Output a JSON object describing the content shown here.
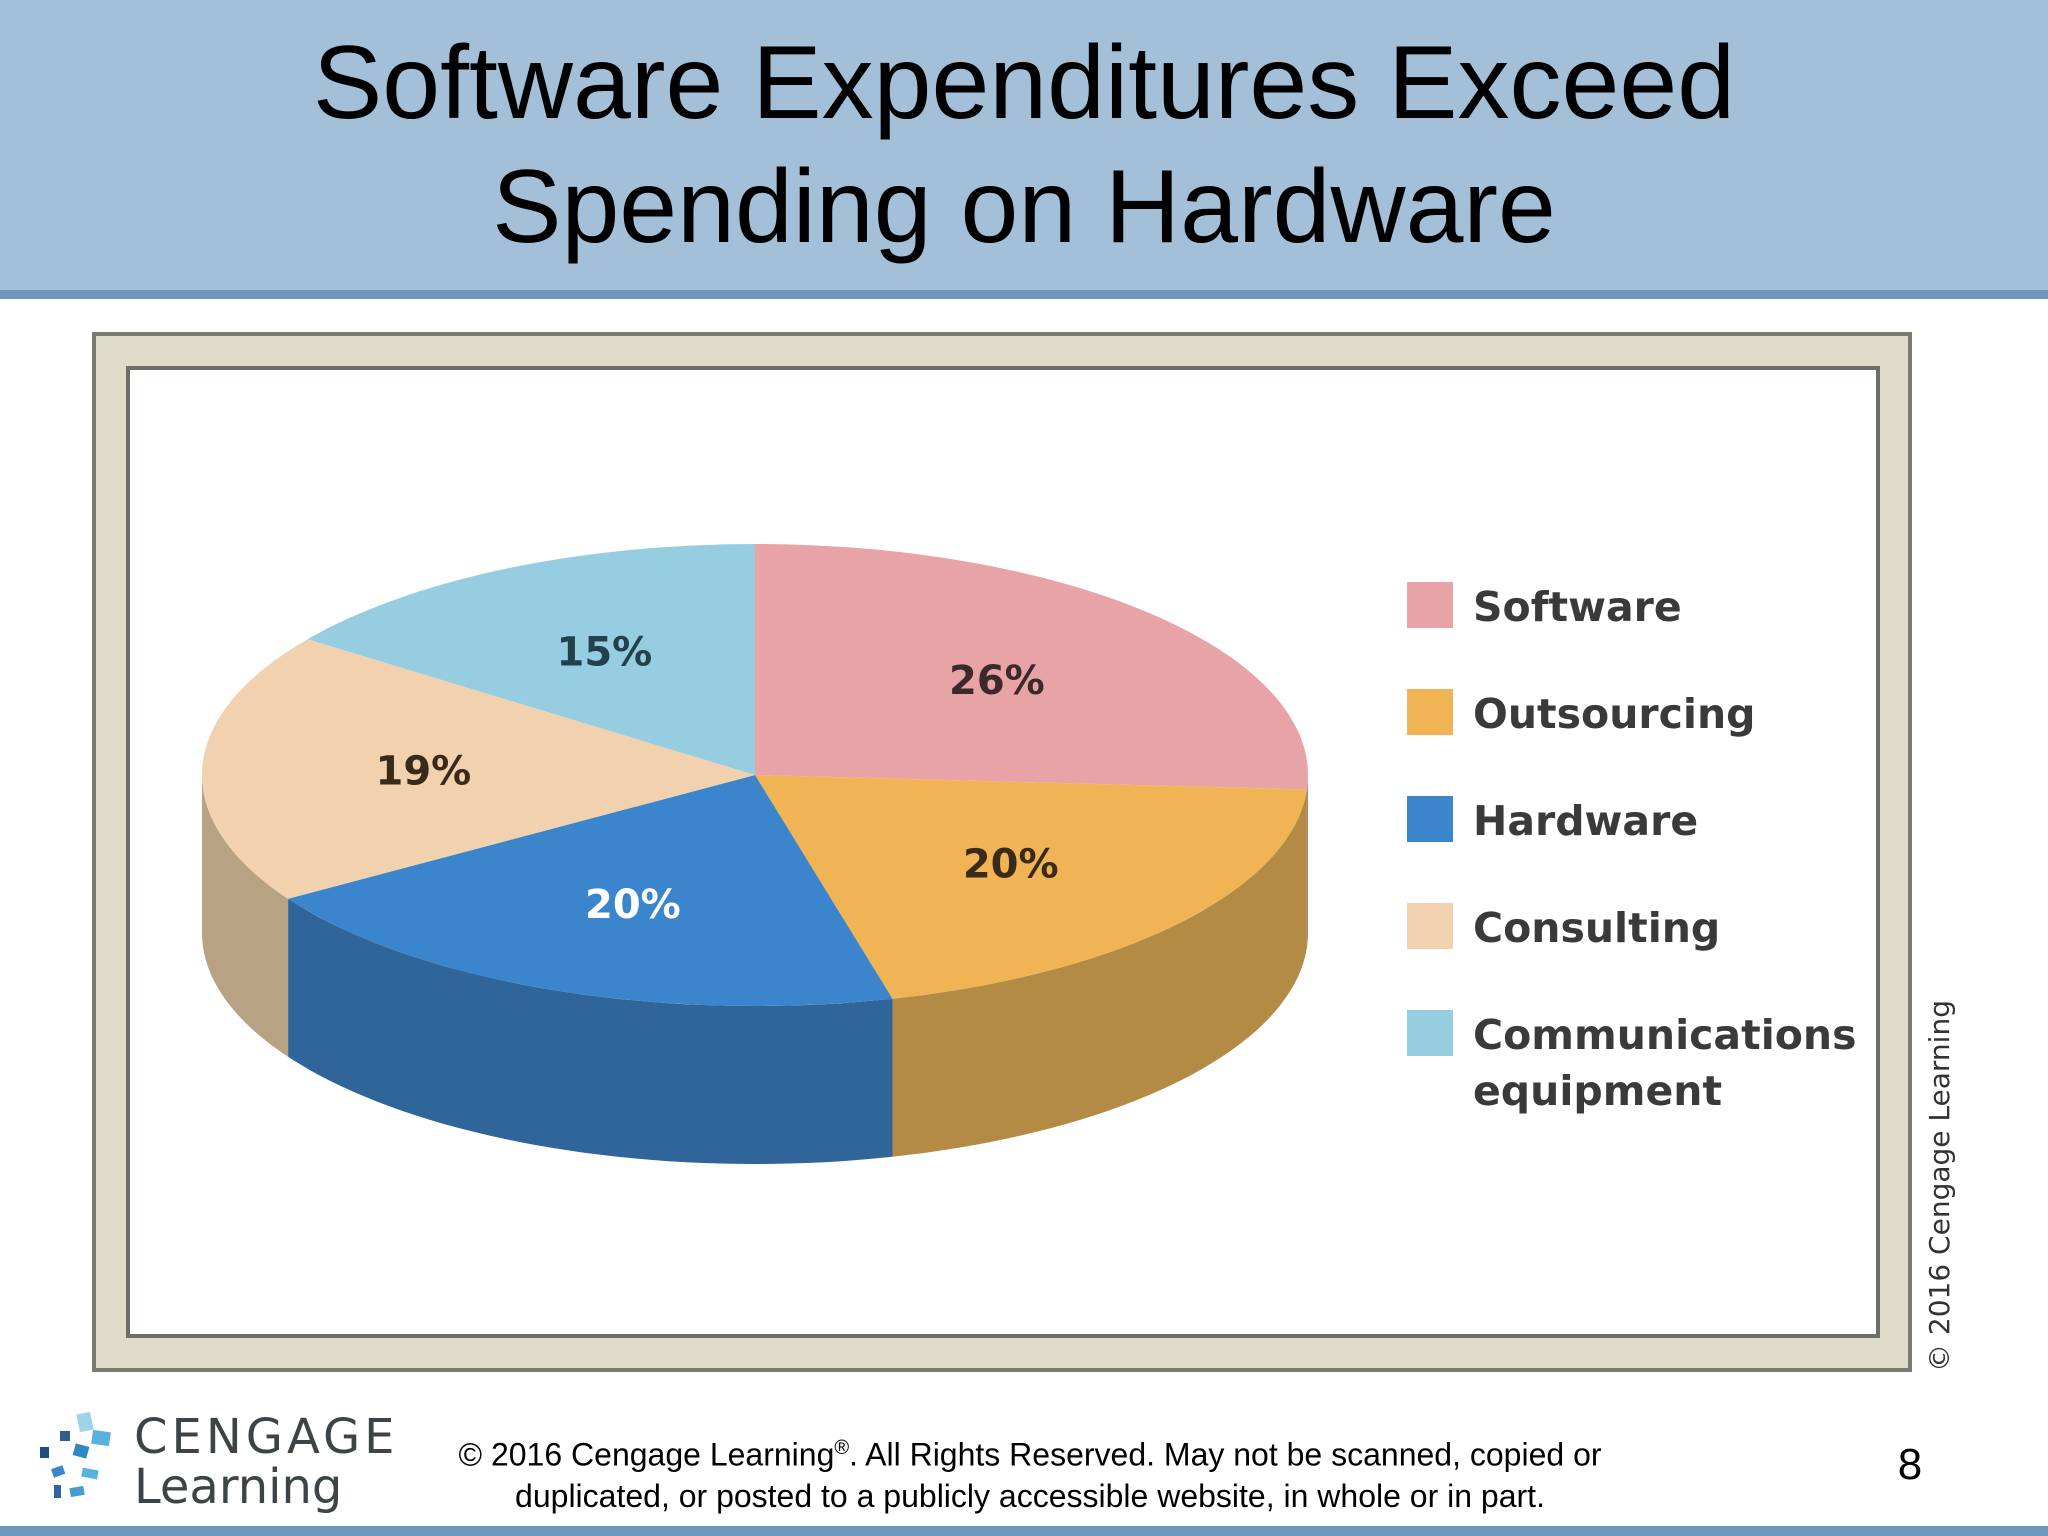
{
  "slide": {
    "title": "Software Expenditures Exceed Spending on Hardware",
    "figure_credit": "© 2016 Cengage Learning",
    "logo_line1": "CENGAGE",
    "logo_line2": "Learning",
    "copyright_prefix": "© 2016 Cengage Learning",
    "copyright_mark": "®",
    "copyright_suffix": ". All Rights Reserved. May not be scanned, copied or duplicated, or posted to a publicly accessible website, in whole or in part.",
    "page_number": "8"
  },
  "chart_data": {
    "type": "pie",
    "title": "",
    "style": "3d",
    "legend": "right",
    "slices": [
      {
        "label": "Software",
        "value": 26,
        "display": "26%",
        "color": "#e8a3a6",
        "side_color": "#b57d7f",
        "text_color": "#3a2a2a"
      },
      {
        "label": "Outsourcing",
        "value": 20,
        "display": "20%",
        "color": "#f0b455",
        "side_color": "#b38b45",
        "text_color": "#3a2a1a"
      },
      {
        "label": "Hardware",
        "value": 20,
        "display": "20%",
        "color": "#3b85cc",
        "side_color": "#2f6599",
        "text_color": "#ffffff"
      },
      {
        "label": "Consulting",
        "value": 19,
        "display": "19%",
        "color": "#f1d1ae",
        "side_color": "#b8a284",
        "text_color": "#3a2a1a"
      },
      {
        "label": "Communications equipment",
        "label_lines": [
          "Communications",
          "equipment"
        ],
        "value": 15,
        "display": "15%",
        "color": "#97cde0",
        "side_color": "#7aa6b6",
        "text_color": "#23404d"
      }
    ]
  }
}
